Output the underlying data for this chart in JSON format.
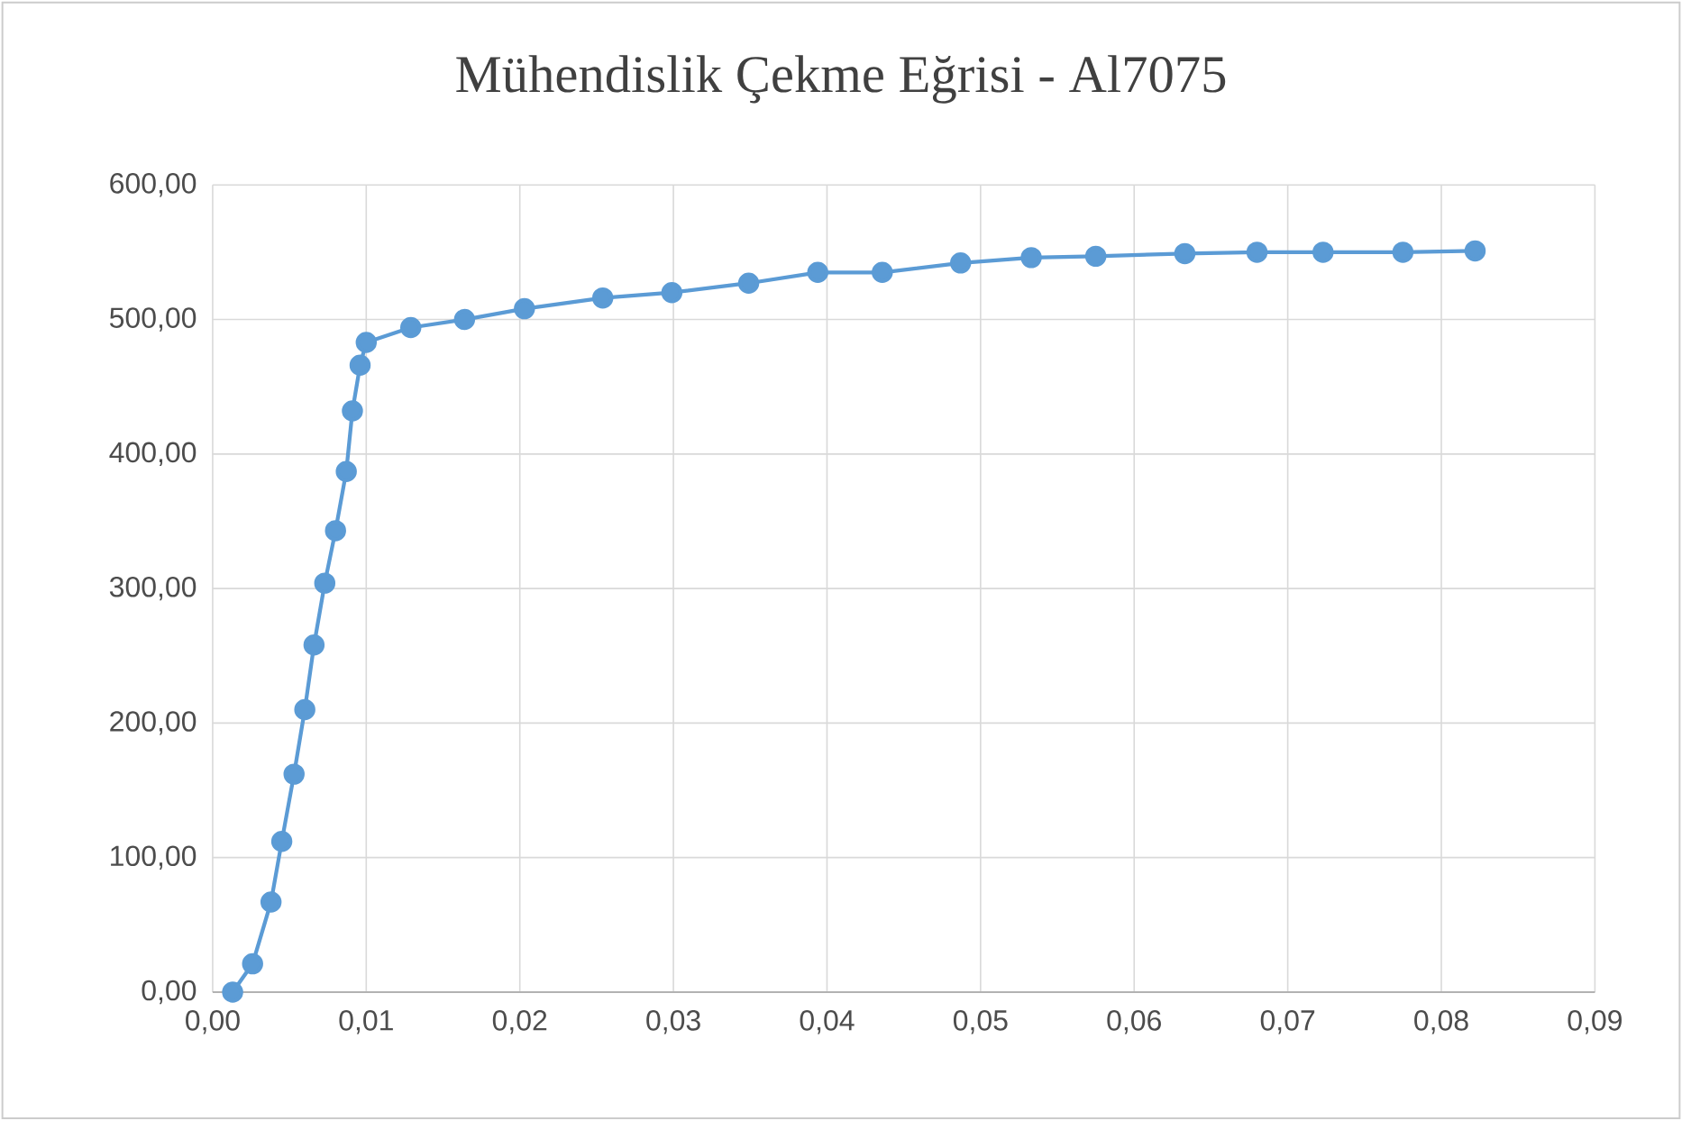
{
  "chart_data": {
    "type": "line",
    "title": "Mühendislik Çekme Eğrisi - Al7075",
    "x": [
      0.0013,
      0.0026,
      0.0038,
      0.0045,
      0.0053,
      0.006,
      0.0066,
      0.0073,
      0.008,
      0.0087,
      0.0091,
      0.0096,
      0.01,
      0.0129,
      0.0164,
      0.0203,
      0.0254,
      0.0299,
      0.0349,
      0.0394,
      0.0436,
      0.0487,
      0.0533,
      0.0575,
      0.0633,
      0.068,
      0.0723,
      0.0775,
      0.0822
    ],
    "series": [
      {
        "color": "#5b9bd5",
        "values": [
          0,
          21,
          67,
          112,
          162,
          210,
          258,
          304,
          343,
          387,
          432,
          466,
          483,
          494,
          500,
          508,
          516,
          520,
          527,
          535,
          535,
          542,
          546,
          547,
          549,
          550,
          550,
          550,
          551
        ]
      }
    ],
    "xlim": [
      0,
      0.09
    ],
    "xticks": [
      {
        "value": 0,
        "label": "0,00"
      },
      {
        "value": 0.01,
        "label": "0,01"
      },
      {
        "value": 0.02,
        "label": "0,02"
      },
      {
        "value": 0.03,
        "label": "0,03"
      },
      {
        "value": 0.04,
        "label": "0,04"
      },
      {
        "value": 0.05,
        "label": "0,05"
      },
      {
        "value": 0.06,
        "label": "0,06"
      },
      {
        "value": 0.07,
        "label": "0,07"
      },
      {
        "value": 0.08,
        "label": "0,08"
      },
      {
        "value": 0.09,
        "label": "0,09"
      }
    ],
    "ylim": [
      0,
      600
    ],
    "yticks": [
      {
        "value": 0,
        "label": "0,00"
      },
      {
        "value": 100,
        "label": "100,00"
      },
      {
        "value": 200,
        "label": "200,00"
      },
      {
        "value": 300,
        "label": "300,00"
      },
      {
        "value": 400,
        "label": "400,00"
      },
      {
        "value": 500,
        "label": "500,00"
      },
      {
        "value": 600,
        "label": "600,00"
      }
    ],
    "grid": true,
    "marker": "circle",
    "line_style": "solid"
  }
}
